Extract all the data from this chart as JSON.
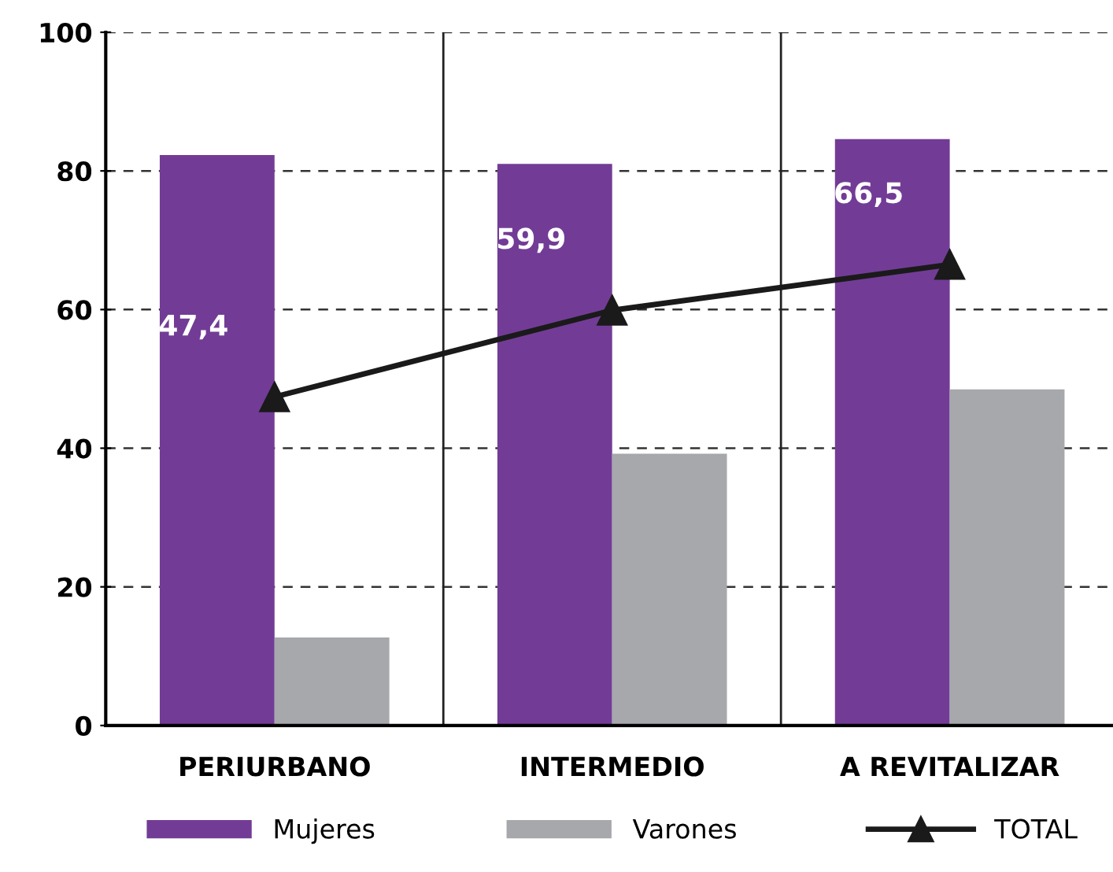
{
  "chart_data": {
    "type": "bar",
    "categories": [
      "PERIURBANO",
      "INTERMEDIO",
      "A REVITALIZAR"
    ],
    "series": [
      {
        "name": "Mujeres",
        "color": "#723c96",
        "values": [
          82.3,
          81.0,
          84.6
        ]
      },
      {
        "name": "Varones",
        "color": "#a7a8ab",
        "values": [
          12.7,
          39.2,
          48.5
        ]
      },
      {
        "name": "TOTAL",
        "type": "line",
        "color": "#1a1a1a",
        "marker": "triangle",
        "values": [
          47.4,
          59.9,
          66.5
        ],
        "value_labels": [
          "47,4",
          "59,9",
          "66,5"
        ]
      }
    ],
    "ylim": [
      0,
      100
    ],
    "yticks": [
      0,
      20,
      40,
      60,
      80,
      100
    ],
    "grid": true,
    "legend": "bottom"
  }
}
